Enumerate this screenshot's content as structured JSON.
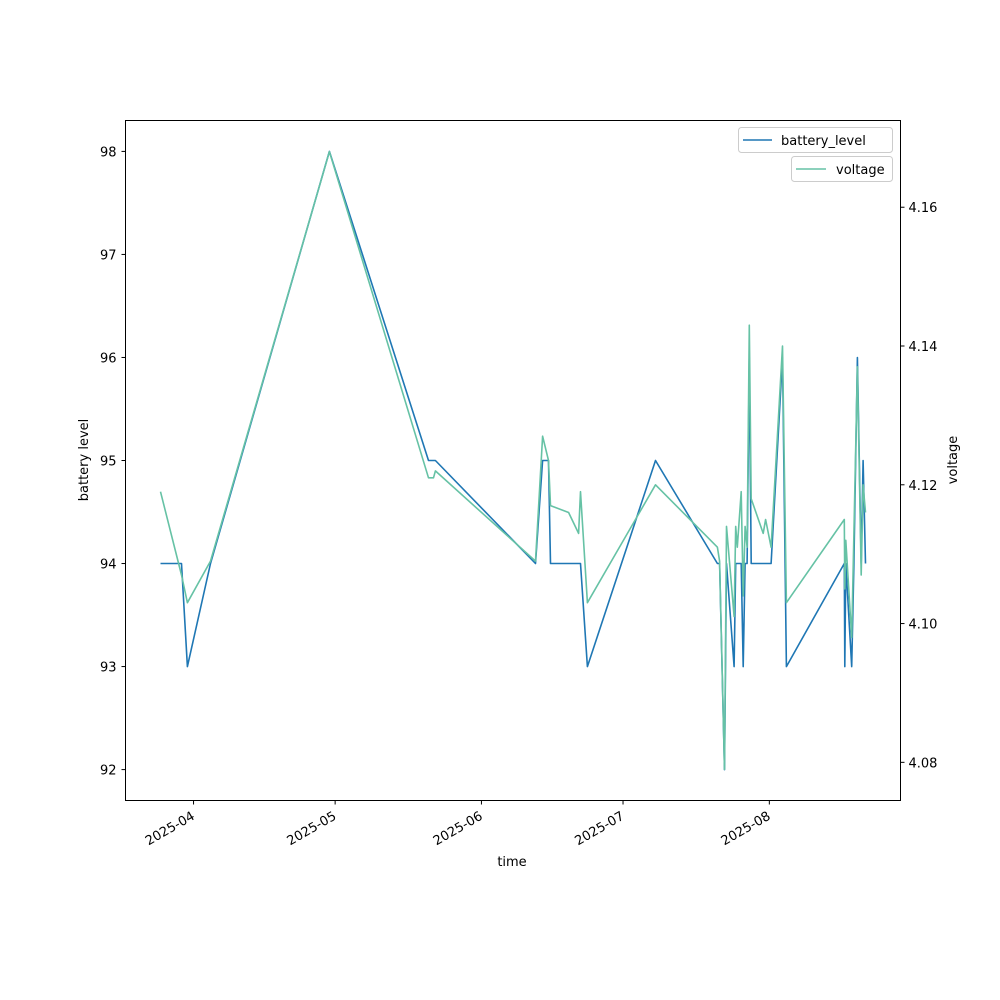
{
  "chart_data": {
    "type": "line",
    "title": "",
    "xlabel": "time",
    "ylabel": "battery level",
    "ylabel_right": "voltage",
    "xlim": [
      "2025-03-17T14:00",
      "2025-08-28T19:00"
    ],
    "ylim": [
      91.7,
      98.3
    ],
    "ylim_right": [
      4.0745,
      4.1725
    ],
    "x_ticks": [
      "2025-04",
      "2025-05",
      "2025-06",
      "2025-07",
      "2025-08"
    ],
    "x_tick_dates": [
      "2025-04-01T00:00",
      "2025-05-01T00:00",
      "2025-06-01T00:00",
      "2025-07-01T00:00",
      "2025-08-01T00:00"
    ],
    "y_ticks": [
      "92",
      "93",
      "94",
      "95",
      "96",
      "97",
      "98"
    ],
    "y_ticks_right": [
      "4.08",
      "4.10",
      "4.12",
      "4.14",
      "4.16"
    ],
    "grid": false,
    "legend_placement": "top-right",
    "x": [
      "2025-03-25T00:00",
      "2025-03-29T11:00",
      "2025-03-30T17:00",
      "2025-04-04T14:00",
      "2025-04-29T19:00",
      "2025-05-20T19:00",
      "2025-05-21T20:00",
      "2025-05-22T06:00",
      "2025-06-12T11:00",
      "2025-06-13T23:00",
      "2025-06-15T05:00",
      "2025-06-15T15:00",
      "2025-06-19T11:00",
      "2025-06-21T14:00",
      "2025-06-22T00:00",
      "2025-06-23T11:00",
      "2025-07-07T21:00",
      "2025-07-21T00:00",
      "2025-07-21T11:00",
      "2025-07-22T12:00",
      "2025-07-22T22:00",
      "2025-07-24T13:00",
      "2025-07-24T21:00",
      "2025-07-25T05:00",
      "2025-07-26T01:00",
      "2025-07-26T11:00",
      "2025-07-26T21:00",
      "2025-07-27T07:00",
      "2025-07-27T18:00",
      "2025-07-28T04:00",
      "2025-07-30T17:00",
      "2025-07-31T05:00",
      "2025-08-01T09:00",
      "2025-08-03T19:00",
      "2025-08-04T15:00",
      "2025-08-16T21:00",
      "2025-08-17T00:00",
      "2025-08-17T05:00",
      "2025-08-18T11:00",
      "2025-08-18T22:00",
      "2025-08-19T16:00",
      "2025-08-20T11:00",
      "2025-08-20T21:00",
      "2025-08-21T09:00"
    ],
    "series": [
      {
        "name": "battery_level",
        "axis": "left",
        "color": "#1f77b4",
        "values": [
          94,
          94,
          93,
          94,
          98,
          95,
          95,
          95,
          94,
          95,
          95,
          94,
          94,
          94,
          94,
          93,
          95,
          94,
          94,
          92,
          94,
          93,
          94,
          94,
          94,
          93,
          94,
          94,
          96,
          94,
          94,
          94,
          94,
          96,
          93,
          94,
          93,
          94,
          93,
          94,
          96,
          94,
          95,
          94
        ]
      },
      {
        "name": "voltage",
        "axis": "right",
        "color": "#66c2a5",
        "values": [
          4.119,
          4.107,
          4.103,
          4.109,
          4.168,
          4.121,
          4.121,
          4.122,
          4.109,
          4.127,
          4.1235,
          4.117,
          4.116,
          4.113,
          4.119,
          4.103,
          4.12,
          4.111,
          4.109,
          4.079,
          4.114,
          4.101,
          4.114,
          4.111,
          4.119,
          4.104,
          4.114,
          4.111,
          4.143,
          4.118,
          4.113,
          4.115,
          4.111,
          4.14,
          4.103,
          4.115,
          4.105,
          4.112,
          4.098,
          4.113,
          4.137,
          4.107,
          4.12,
          4.116
        ]
      }
    ]
  }
}
